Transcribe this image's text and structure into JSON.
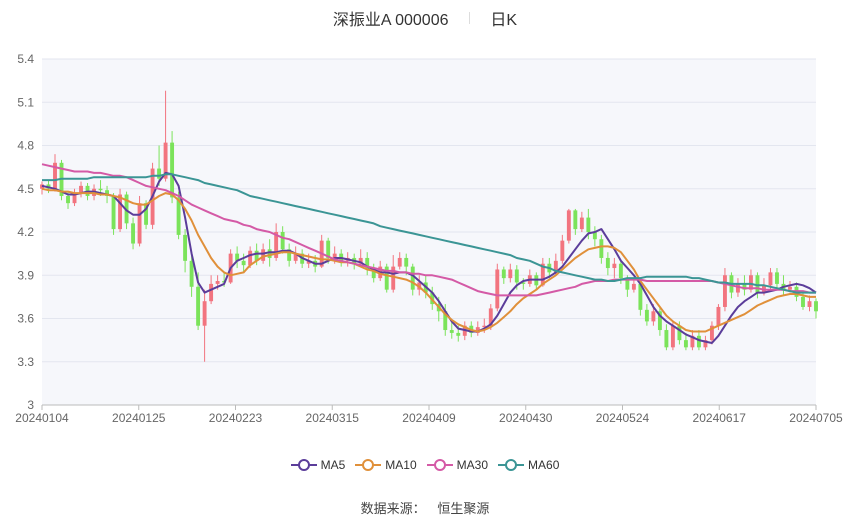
{
  "title": {
    "stock": "深振业A 000006",
    "period": "日K"
  },
  "source": {
    "label": "数据来源：",
    "value": "恒生聚源"
  },
  "colors": {
    "up": "#f2747f",
    "down": "#7be35a",
    "MA5": "#5b3d9a",
    "MA10": "#e0903a",
    "MA30": "#d45aa6",
    "MA60": "#3b9595",
    "grid": "#e3e6ef",
    "plot_bg": "#f6f7fb",
    "axis_text": "#666666"
  },
  "chart_data": {
    "type": "candlestick",
    "xlabel": "",
    "ylabel": "",
    "ylim": [
      3,
      5.4
    ],
    "y_ticks": [
      3,
      3.3,
      3.6,
      3.9,
      4.2,
      4.5,
      4.8,
      5.1,
      5.4
    ],
    "x_ticks": [
      "20240104",
      "20240125",
      "20240223",
      "20240315",
      "20240409",
      "20240430",
      "20240524",
      "20240617",
      "20240705"
    ],
    "grid": true,
    "legend_position": "bottom-center",
    "n_days": 120,
    "candles": [
      [
        4.5,
        4.53,
        4.55,
        4.46
      ],
      [
        4.53,
        4.5,
        4.56,
        4.47
      ],
      [
        4.5,
        4.68,
        4.74,
        4.48
      ],
      [
        4.68,
        4.45,
        4.7,
        4.42
      ],
      [
        4.45,
        4.4,
        4.48,
        4.36
      ],
      [
        4.4,
        4.47,
        4.5,
        4.38
      ],
      [
        4.47,
        4.52,
        4.55,
        4.44
      ],
      [
        4.52,
        4.45,
        4.54,
        4.42
      ],
      [
        4.45,
        4.5,
        4.53,
        4.42
      ],
      [
        4.5,
        4.49,
        4.56,
        4.45
      ],
      [
        4.49,
        4.45,
        4.52,
        4.4
      ],
      [
        4.45,
        4.22,
        4.47,
        4.18
      ],
      [
        4.22,
        4.46,
        4.5,
        4.2
      ],
      [
        4.46,
        4.26,
        4.48,
        4.22
      ],
      [
        4.26,
        4.12,
        4.3,
        4.08
      ],
      [
        4.12,
        4.4,
        4.45,
        4.1
      ],
      [
        4.4,
        4.25,
        4.42,
        4.22
      ],
      [
        4.25,
        4.64,
        4.68,
        4.22
      ],
      [
        4.64,
        4.57,
        4.8,
        4.52
      ],
      [
        4.57,
        4.82,
        5.18,
        4.55
      ],
      [
        4.82,
        4.44,
        4.9,
        4.4
      ],
      [
        4.44,
        4.18,
        4.48,
        4.15
      ],
      [
        4.18,
        4.0,
        4.22,
        3.92
      ],
      [
        4.0,
        3.82,
        4.05,
        3.75
      ],
      [
        3.82,
        3.55,
        3.92,
        3.52
      ],
      [
        3.55,
        3.72,
        3.8,
        3.3
      ],
      [
        3.72,
        3.84,
        3.9,
        3.7
      ],
      [
        3.84,
        3.86,
        3.9,
        3.8
      ],
      [
        3.86,
        3.85,
        3.92,
        3.82
      ],
      [
        3.85,
        4.05,
        4.08,
        3.84
      ],
      [
        4.05,
        4.0,
        4.1,
        3.95
      ],
      [
        4.0,
        3.97,
        4.05,
        3.92
      ],
      [
        3.97,
        4.07,
        4.1,
        3.95
      ],
      [
        4.07,
        4.0,
        4.12,
        3.97
      ],
      [
        4.0,
        4.08,
        4.12,
        3.98
      ],
      [
        4.08,
        4.02,
        4.15,
        3.96
      ],
      [
        4.02,
        4.2,
        4.26,
        4.0
      ],
      [
        4.2,
        4.08,
        4.24,
        4.05
      ],
      [
        4.08,
        4.0,
        4.12,
        3.96
      ],
      [
        4.0,
        4.05,
        4.1,
        3.98
      ],
      [
        4.05,
        3.98,
        4.08,
        3.95
      ],
      [
        3.98,
        4.0,
        4.05,
        3.95
      ],
      [
        4.0,
        3.96,
        4.04,
        3.92
      ],
      [
        3.96,
        4.14,
        4.18,
        3.95
      ],
      [
        4.14,
        4.02,
        4.16,
        3.98
      ],
      [
        4.02,
        4.05,
        4.1,
        3.98
      ],
      [
        4.05,
        4.0,
        4.08,
        3.96
      ],
      [
        4.0,
        4.02,
        4.06,
        3.96
      ],
      [
        4.02,
        3.98,
        4.05,
        3.94
      ],
      [
        3.98,
        4.02,
        4.08,
        3.96
      ],
      [
        4.02,
        3.94,
        4.06,
        3.9
      ],
      [
        3.94,
        3.88,
        3.98,
        3.85
      ],
      [
        3.88,
        3.96,
        4.0,
        3.86
      ],
      [
        3.96,
        3.8,
        3.98,
        3.78
      ],
      [
        3.8,
        3.96,
        4.04,
        3.78
      ],
      [
        3.96,
        4.02,
        4.06,
        3.94
      ],
      [
        4.02,
        3.96,
        4.05,
        3.9
      ],
      [
        3.96,
        3.8,
        3.98,
        3.76
      ],
      [
        3.8,
        3.85,
        3.9,
        3.76
      ],
      [
        3.85,
        3.78,
        3.9,
        3.74
      ],
      [
        3.78,
        3.7,
        3.82,
        3.66
      ],
      [
        3.7,
        3.65,
        3.75,
        3.58
      ],
      [
        3.65,
        3.52,
        3.7,
        3.48
      ],
      [
        3.52,
        3.5,
        3.58,
        3.46
      ],
      [
        3.5,
        3.48,
        3.55,
        3.44
      ],
      [
        3.48,
        3.55,
        3.58,
        3.45
      ],
      [
        3.55,
        3.5,
        3.58,
        3.47
      ],
      [
        3.5,
        3.54,
        3.58,
        3.48
      ],
      [
        3.54,
        3.55,
        3.6,
        3.5
      ],
      [
        3.55,
        3.67,
        3.7,
        3.52
      ],
      [
        3.67,
        3.94,
        3.98,
        3.65
      ],
      [
        3.94,
        3.88,
        3.96,
        3.84
      ],
      [
        3.88,
        3.94,
        3.98,
        3.85
      ],
      [
        3.94,
        3.85,
        3.97,
        3.8
      ],
      [
        3.85,
        3.84,
        3.88,
        3.8
      ],
      [
        3.84,
        3.9,
        3.94,
        3.82
      ],
      [
        3.9,
        3.83,
        3.92,
        3.8
      ],
      [
        3.83,
        3.98,
        4.02,
        3.82
      ],
      [
        3.98,
        3.92,
        4.02,
        3.88
      ],
      [
        3.92,
        4.0,
        4.05,
        3.9
      ],
      [
        4.0,
        4.14,
        4.18,
        3.98
      ],
      [
        4.14,
        4.35,
        4.36,
        4.12
      ],
      [
        4.35,
        4.22,
        4.36,
        4.18
      ],
      [
        4.22,
        4.3,
        4.34,
        4.2
      ],
      [
        4.3,
        4.2,
        4.36,
        4.15
      ],
      [
        4.2,
        4.15,
        4.24,
        4.1
      ],
      [
        4.15,
        4.02,
        4.18,
        3.98
      ],
      [
        4.02,
        3.95,
        4.06,
        3.9
      ],
      [
        3.95,
        3.98,
        4.02,
        3.88
      ],
      [
        3.98,
        3.88,
        4.0,
        3.84
      ],
      [
        3.88,
        3.8,
        3.9,
        3.75
      ],
      [
        3.8,
        3.84,
        3.88,
        3.78
      ],
      [
        3.84,
        3.66,
        3.86,
        3.62
      ],
      [
        3.66,
        3.58,
        3.7,
        3.55
      ],
      [
        3.58,
        3.65,
        3.7,
        3.55
      ],
      [
        3.65,
        3.52,
        3.68,
        3.48
      ],
      [
        3.52,
        3.4,
        3.56,
        3.38
      ],
      [
        3.4,
        3.55,
        3.58,
        3.38
      ],
      [
        3.55,
        3.45,
        3.58,
        3.42
      ],
      [
        3.45,
        3.4,
        3.5,
        3.38
      ],
      [
        3.4,
        3.48,
        3.52,
        3.38
      ],
      [
        3.48,
        3.4,
        3.52,
        3.38
      ],
      [
        3.4,
        3.45,
        3.48,
        3.38
      ],
      [
        3.45,
        3.55,
        3.58,
        3.42
      ],
      [
        3.55,
        3.68,
        3.7,
        3.52
      ],
      [
        3.68,
        3.9,
        3.95,
        3.65
      ],
      [
        3.9,
        3.78,
        3.92,
        3.74
      ],
      [
        3.78,
        3.84,
        3.88,
        3.75
      ],
      [
        3.84,
        3.8,
        3.9,
        3.76
      ],
      [
        3.8,
        3.9,
        3.94,
        3.78
      ],
      [
        3.9,
        3.78,
        3.92,
        3.74
      ],
      [
        3.78,
        3.83,
        3.88,
        3.76
      ],
      [
        3.83,
        3.92,
        3.95,
        3.8
      ],
      [
        3.92,
        3.84,
        3.95,
        3.8
      ],
      [
        3.84,
        3.8,
        3.9,
        3.76
      ],
      [
        3.8,
        3.82,
        3.86,
        3.78
      ],
      [
        3.82,
        3.75,
        3.85,
        3.72
      ],
      [
        3.75,
        3.68,
        3.78,
        3.66
      ],
      [
        3.68,
        3.72,
        3.76,
        3.65
      ],
      [
        3.72,
        3.65,
        3.74,
        3.6
      ]
    ],
    "series": [
      {
        "name": "MA5",
        "values": [
          4.52,
          4.51,
          4.5,
          4.48,
          4.46,
          4.46,
          4.47,
          4.48,
          4.48,
          4.47,
          4.46,
          4.45,
          4.4,
          4.35,
          4.32,
          4.32,
          4.36,
          4.45,
          4.55,
          4.61,
          4.6,
          4.52,
          4.3,
          4.05,
          3.85,
          3.78,
          3.8,
          3.82,
          3.84,
          3.95,
          4.0,
          4.02,
          4.04,
          4.05,
          4.05,
          4.06,
          4.06,
          4.07,
          4.07,
          4.05,
          4.02,
          4.0,
          3.98,
          3.98,
          4.0,
          4.02,
          4.02,
          4.01,
          4.0,
          3.99,
          3.96,
          3.94,
          3.92,
          3.92,
          3.91,
          3.92,
          3.92,
          3.9,
          3.86,
          3.82,
          3.78,
          3.72,
          3.65,
          3.58,
          3.53,
          3.52,
          3.51,
          3.51,
          3.53,
          3.56,
          3.62,
          3.7,
          3.78,
          3.83,
          3.86,
          3.87,
          3.87,
          3.87,
          3.89,
          3.92,
          3.96,
          4.02,
          4.08,
          4.14,
          4.19,
          4.2,
          4.22,
          4.15,
          4.08,
          4.0,
          3.95,
          3.9,
          3.84,
          3.76,
          3.68,
          3.62,
          3.58,
          3.55,
          3.52,
          3.49,
          3.47,
          3.45,
          3.44,
          3.43,
          3.48,
          3.55,
          3.62,
          3.68,
          3.72,
          3.75,
          3.78,
          3.78,
          3.79,
          3.8,
          3.82,
          3.83,
          3.84,
          3.83,
          3.81,
          3.78
        ]
      },
      {
        "name": "MA10",
        "values": [
          4.5,
          4.49,
          4.49,
          4.48,
          4.48,
          4.47,
          4.47,
          4.47,
          4.47,
          4.46,
          4.46,
          4.45,
          4.44,
          4.42,
          4.4,
          4.39,
          4.39,
          4.42,
          4.45,
          4.47,
          4.46,
          4.42,
          4.36,
          4.28,
          4.18,
          4.1,
          4.02,
          3.96,
          3.92,
          3.9,
          3.91,
          3.92,
          3.97,
          4.0,
          4.03,
          4.04,
          4.05,
          4.06,
          4.06,
          4.05,
          4.04,
          4.03,
          4.02,
          4.01,
          4.01,
          4.0,
          3.99,
          3.99,
          3.98,
          3.96,
          3.94,
          3.93,
          3.91,
          3.9,
          3.89,
          3.88,
          3.87,
          3.85,
          3.82,
          3.78,
          3.73,
          3.68,
          3.63,
          3.59,
          3.56,
          3.54,
          3.52,
          3.51,
          3.52,
          3.54,
          3.57,
          3.61,
          3.65,
          3.7,
          3.74,
          3.77,
          3.8,
          3.84,
          3.87,
          3.9,
          3.94,
          3.98,
          4.02,
          4.05,
          4.08,
          4.09,
          4.1,
          4.1,
          4.09,
          4.06,
          4.0,
          3.94,
          3.86,
          3.8,
          3.74,
          3.68,
          3.62,
          3.58,
          3.55,
          3.52,
          3.51,
          3.51,
          3.51,
          3.53,
          3.55,
          3.57,
          3.59,
          3.61,
          3.63,
          3.66,
          3.69,
          3.71,
          3.73,
          3.75,
          3.76,
          3.77,
          3.77,
          3.76,
          3.75,
          3.75
        ]
      },
      {
        "name": "MA30",
        "values": [
          4.67,
          4.66,
          4.65,
          4.64,
          4.63,
          4.62,
          4.62,
          4.62,
          4.61,
          4.61,
          4.6,
          4.59,
          4.59,
          4.58,
          4.56,
          4.54,
          4.52,
          4.51,
          4.5,
          4.49,
          4.47,
          4.45,
          4.42,
          4.39,
          4.37,
          4.35,
          4.33,
          4.31,
          4.29,
          4.28,
          4.27,
          4.25,
          4.24,
          4.22,
          4.21,
          4.2,
          4.18,
          4.16,
          4.15,
          4.13,
          4.11,
          4.09,
          4.07,
          4.05,
          4.03,
          4.01,
          4.0,
          3.99,
          3.98,
          3.97,
          3.96,
          3.95,
          3.94,
          3.93,
          3.93,
          3.92,
          3.92,
          3.91,
          3.91,
          3.9,
          3.9,
          3.89,
          3.88,
          3.87,
          3.85,
          3.83,
          3.81,
          3.79,
          3.78,
          3.77,
          3.76,
          3.76,
          3.76,
          3.76,
          3.76,
          3.76,
          3.76,
          3.77,
          3.78,
          3.79,
          3.8,
          3.81,
          3.82,
          3.84,
          3.85,
          3.86,
          3.86,
          3.86,
          3.87,
          3.87,
          3.87,
          3.87,
          3.87,
          3.86,
          3.86,
          3.86,
          3.86,
          3.86,
          3.86,
          3.86,
          3.86,
          3.86,
          3.86,
          3.86,
          3.85,
          3.84,
          3.83,
          3.82,
          3.81,
          3.81,
          3.81,
          3.8,
          3.8,
          3.8,
          3.8,
          3.79,
          3.79,
          3.79,
          3.78,
          3.78
        ]
      },
      {
        "name": "MA60",
        "values": [
          4.56,
          4.56,
          4.56,
          4.57,
          4.57,
          4.57,
          4.57,
          4.57,
          4.58,
          4.58,
          4.58,
          4.58,
          4.58,
          4.58,
          4.58,
          4.58,
          4.58,
          4.59,
          4.59,
          4.6,
          4.6,
          4.59,
          4.58,
          4.57,
          4.56,
          4.54,
          4.53,
          4.52,
          4.51,
          4.5,
          4.49,
          4.47,
          4.45,
          4.44,
          4.43,
          4.42,
          4.41,
          4.4,
          4.39,
          4.38,
          4.37,
          4.36,
          4.35,
          4.34,
          4.33,
          4.32,
          4.31,
          4.3,
          4.29,
          4.28,
          4.27,
          4.26,
          4.24,
          4.23,
          4.22,
          4.21,
          4.2,
          4.19,
          4.18,
          4.17,
          4.16,
          4.15,
          4.14,
          4.13,
          4.12,
          4.11,
          4.1,
          4.09,
          4.08,
          4.07,
          4.06,
          4.05,
          4.04,
          4.02,
          4.01,
          4.0,
          3.98,
          3.96,
          3.95,
          3.93,
          3.92,
          3.91,
          3.9,
          3.89,
          3.88,
          3.87,
          3.87,
          3.86,
          3.86,
          3.87,
          3.88,
          3.88,
          3.88,
          3.89,
          3.89,
          3.89,
          3.89,
          3.89,
          3.89,
          3.89,
          3.88,
          3.88,
          3.87,
          3.86,
          3.85,
          3.85,
          3.84,
          3.84,
          3.84,
          3.84,
          3.83,
          3.83,
          3.82,
          3.81,
          3.8,
          3.79,
          3.78,
          3.78,
          3.78,
          3.78
        ]
      }
    ]
  }
}
